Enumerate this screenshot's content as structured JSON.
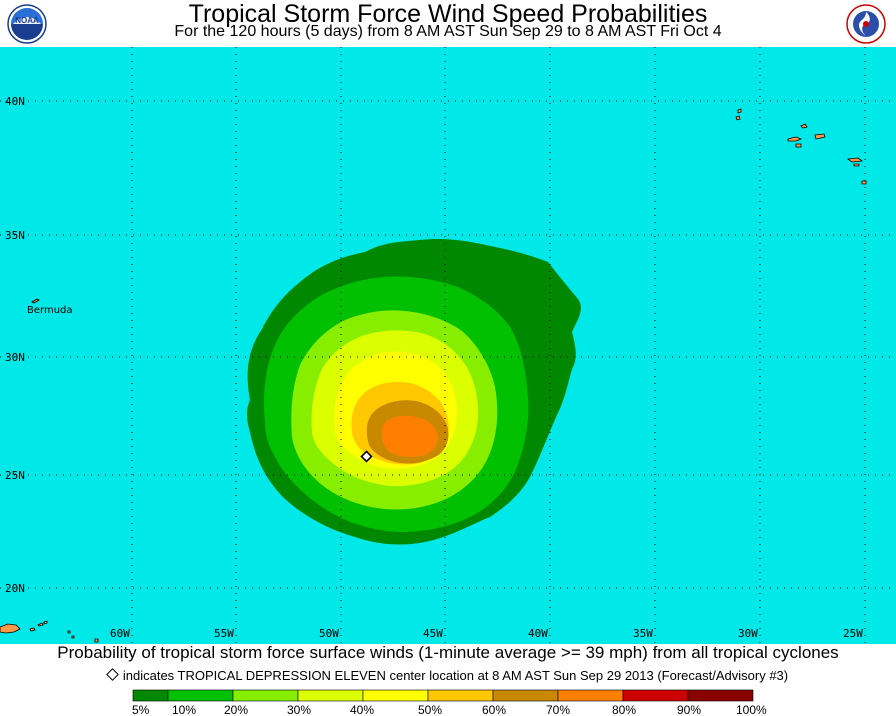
{
  "header": {
    "title": "Tropical Storm Force Wind Speed Probabilities",
    "subtitle": "For the 120 hours (5 days) from 8 AM AST Sun Sep 29 to 8 AM AST Fri Oct 4",
    "logo_left": "NOAA",
    "logo_right": "NATIONAL WEATHER SERVICE"
  },
  "map": {
    "ocean_color": "#00e8e8",
    "grid_color": "#000000",
    "lat_labels": [
      "40N",
      "35N",
      "30N",
      "25N",
      "20N"
    ],
    "lon_labels": [
      "60W",
      "55W",
      "50W",
      "45W",
      "40W",
      "35W",
      "30W",
      "25W"
    ],
    "place_labels": [
      "Bermuda"
    ],
    "storm_center_marker": "diamond"
  },
  "probability_levels": [
    {
      "label": "5%",
      "color": "#008800"
    },
    {
      "label": "10%",
      "color": "#00c000"
    },
    {
      "label": "20%",
      "color": "#88ee00"
    },
    {
      "label": "30%",
      "color": "#dcff00"
    },
    {
      "label": "40%",
      "color": "#ffff00"
    },
    {
      "label": "50%",
      "color": "#ffc800"
    },
    {
      "label": "60%",
      "color": "#c88800"
    },
    {
      "label": "70%",
      "color": "#ff8000"
    },
    {
      "label": "80%",
      "color": "#cc0000"
    },
    {
      "label": "90%",
      "color": "#880000"
    },
    {
      "label": "100%",
      "color": "#880088"
    }
  ],
  "legend_edge_labels": [
    "5%",
    "10%",
    "20%",
    "30%",
    "40%",
    "50%",
    "60%",
    "70%",
    "80%",
    "90%",
    "100%"
  ],
  "footer": {
    "caption": "Probability of tropical storm force surface winds (1-minute average >= 39 mph) from all tropical cyclones",
    "note": "indicates TROPICAL DEPRESSION ELEVEN center location at 8 AM AST Sun Sep 29 2013 (Forecast/Advisory #3)"
  }
}
